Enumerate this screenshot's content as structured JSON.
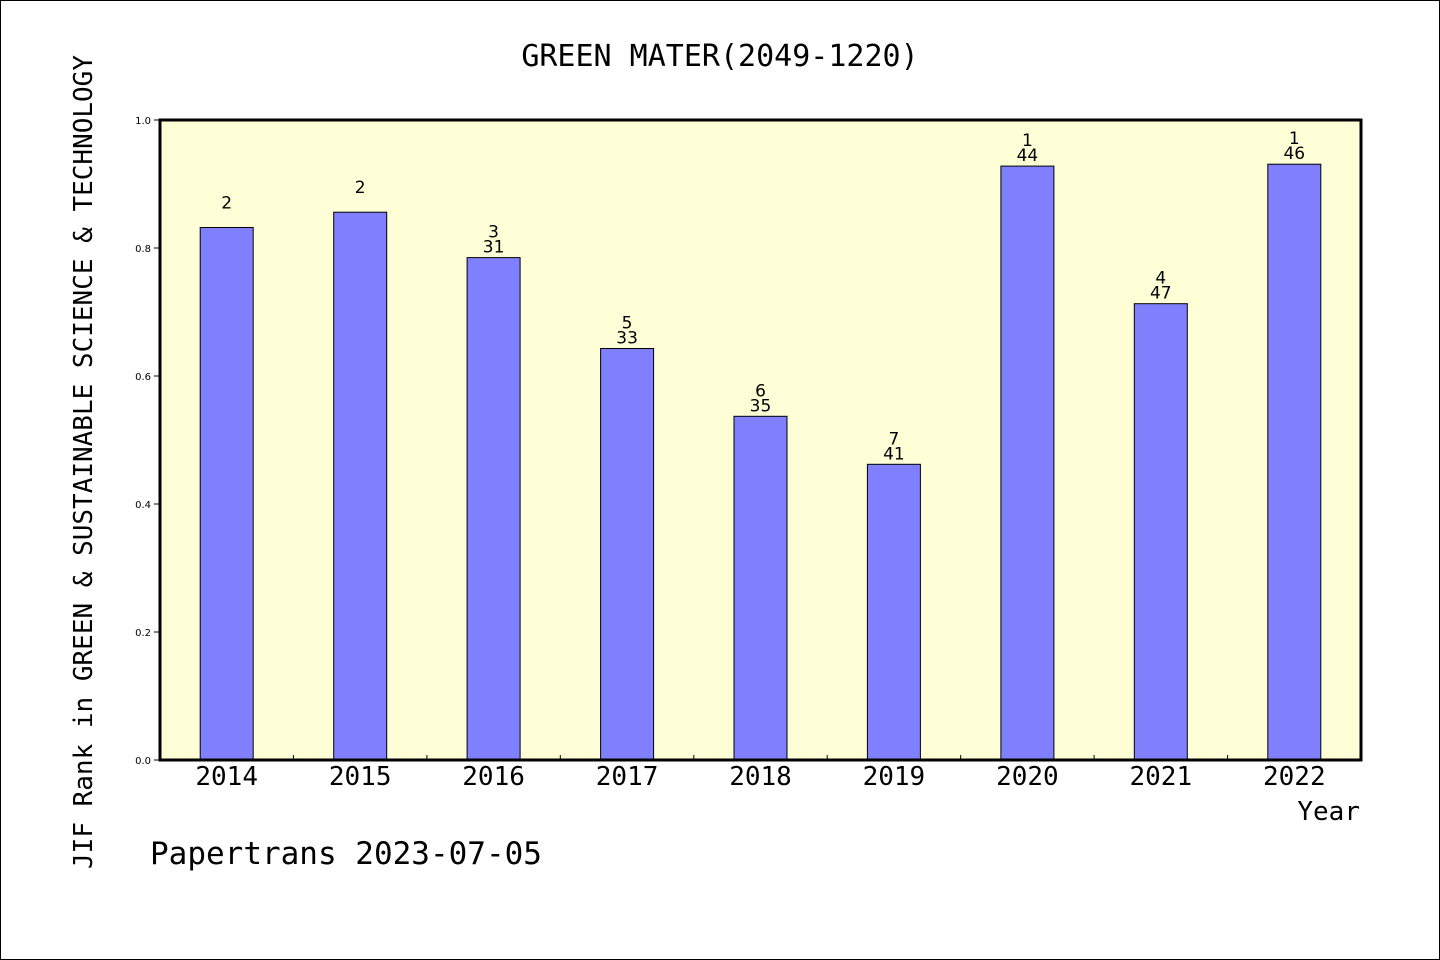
{
  "chart_data": {
    "type": "bar",
    "title": "GREEN MATER(2049-1220)",
    "xlabel": "Year",
    "ylabel": "JIF Rank in GREEN & SUSTAINABLE SCIENCE & TECHNOLOGY",
    "ylim": [
      0,
      1.0
    ],
    "yticks": [
      "0.0",
      "0.2",
      "0.4",
      "0.6",
      "0.8",
      "1.0"
    ],
    "categories": [
      "2014",
      "2015",
      "2016",
      "2017",
      "2018",
      "2019",
      "2020",
      "2021",
      "2022"
    ],
    "values": [
      0.832,
      0.856,
      0.785,
      0.643,
      0.537,
      0.462,
      0.928,
      0.713,
      0.931
    ],
    "rank": [
      "2",
      "2",
      "3",
      "5",
      "6",
      "7",
      "1",
      "4",
      "1"
    ],
    "total": [
      "",
      "",
      "31",
      "33",
      "35",
      "41",
      "44",
      "47",
      "46"
    ],
    "grid": false,
    "colors": {
      "bar": "#8080ff",
      "plot_bg": "#ffffd7",
      "axis": "#000000"
    }
  },
  "footer": "Papertrans 2023-07-05"
}
